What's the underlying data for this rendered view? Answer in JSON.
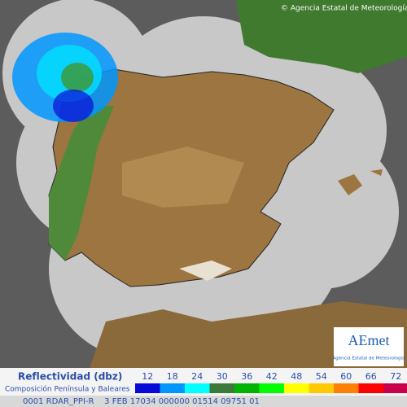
{
  "copyright": "© Agencia Estatal de Meteorología",
  "logo": {
    "name": "AEmet",
    "caption": "Agencia Estatal de Meteorología"
  },
  "legend": {
    "title": "Reflectividad (dbz)",
    "subtitle": "Composición Península y Baleares",
    "items": [
      {
        "label": 12,
        "color": "#0a0ad8"
      },
      {
        "label": 18,
        "color": "#0096ff"
      },
      {
        "label": 24,
        "color": "#00ffff"
      },
      {
        "label": 30,
        "color": "#3c7a3c"
      },
      {
        "label": 36,
        "color": "#00b400"
      },
      {
        "label": 42,
        "color": "#00ff00"
      },
      {
        "label": 48,
        "color": "#ffff00"
      },
      {
        "label": 54,
        "color": "#ffc800"
      },
      {
        "label": 60,
        "color": "#ff8000"
      },
      {
        "label": 66,
        "color": "#ff0000"
      },
      {
        "label": 72,
        "color": "#c8004c"
      }
    ]
  },
  "footer": "0001 RDAR_PPI-R    3 FEB 17034 000000 01514 09751 01"
}
